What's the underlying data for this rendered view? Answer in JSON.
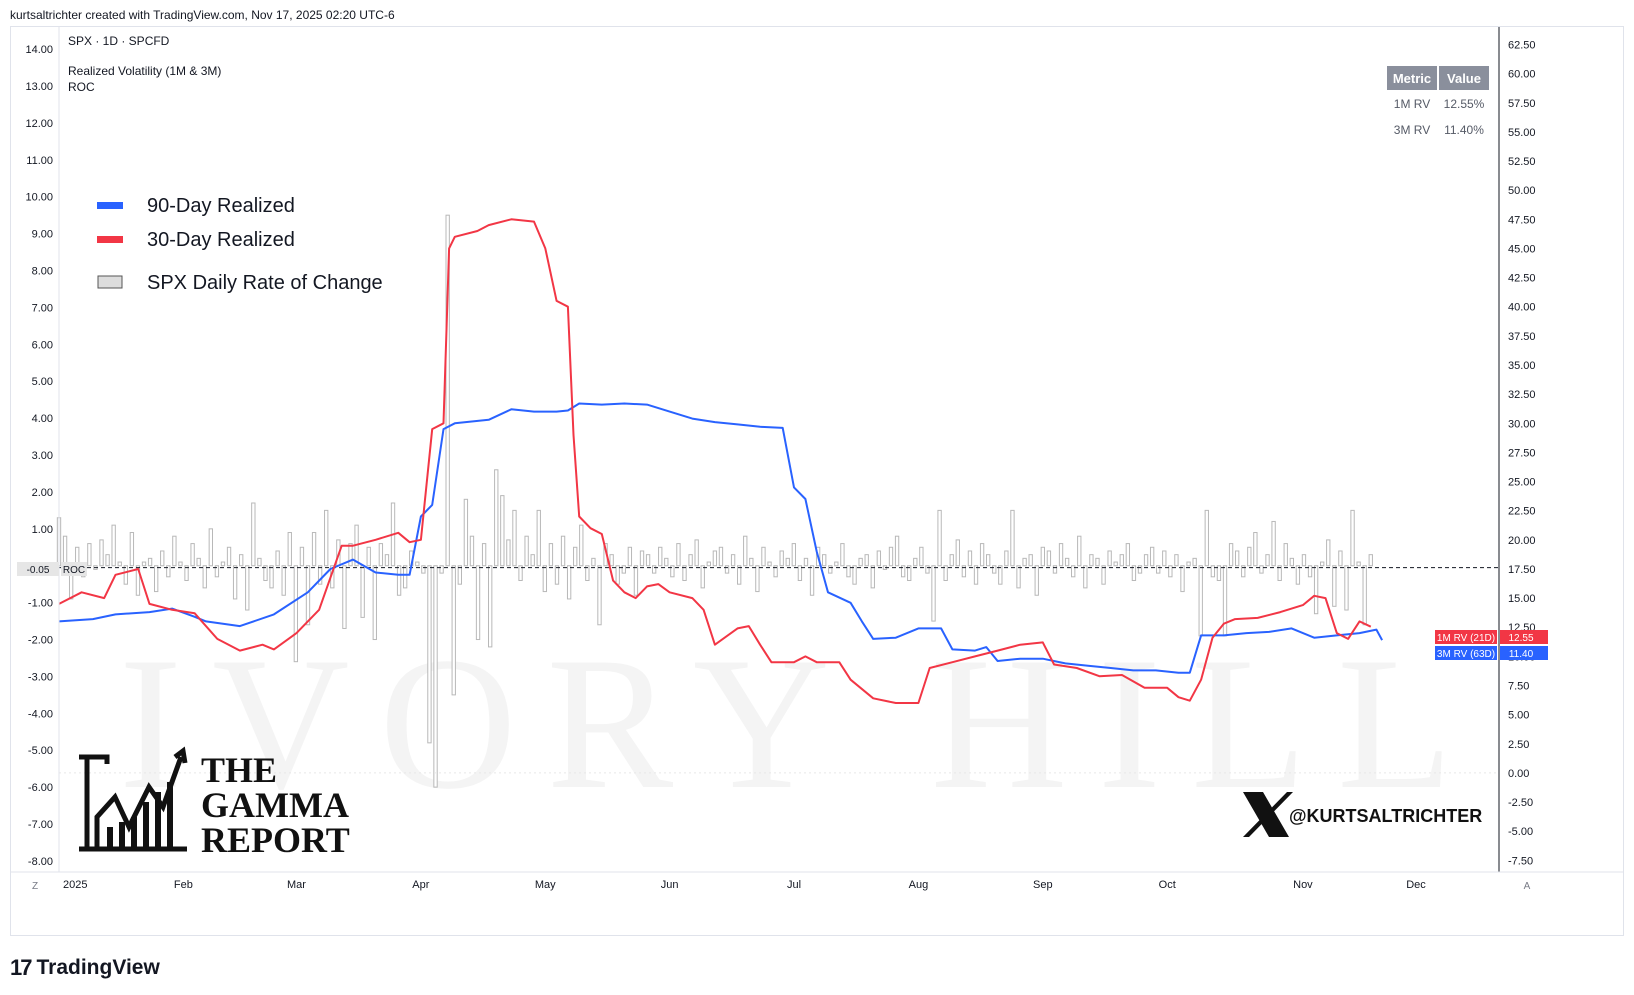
{
  "header": {
    "attribution": "kurtsaltrichter created with TradingView.com, Nov 17, 2025 02:20 UTC-6"
  },
  "pane": {
    "symbol": "SPX · 1D · SPCFD",
    "indicator_name": "Realized Volatility (1M & 3M)",
    "roc_label": "ROC"
  },
  "legend": {
    "items": [
      {
        "label": "90-Day Realized",
        "color": "#2962ff",
        "kind": "line"
      },
      {
        "label": "30-Day Realized",
        "color": "#f23645",
        "kind": "line"
      },
      {
        "label": "SPX Daily Rate of Change",
        "color": "#bdbdbd",
        "kind": "box"
      }
    ]
  },
  "metrics_table": {
    "headers": [
      "Metric",
      "Value"
    ],
    "rows": [
      {
        "metric": "1M RV",
        "value": "12.55%"
      },
      {
        "metric": "3M RV",
        "value": "11.40%"
      }
    ]
  },
  "price_tags": {
    "red": {
      "label": "1M RV (21D)",
      "value": "12.55",
      "color": "#f23645"
    },
    "blue": {
      "label": "3M RV (63D)",
      "value": "11.40",
      "color": "#2962ff"
    },
    "roc": {
      "label": "ROC",
      "value": "-0.05"
    }
  },
  "branding": {
    "gamma_report": [
      "THE",
      "GAMMA",
      "REPORT"
    ],
    "x_handle": "@KURTSALTRICHTER",
    "watermark": "IVORY HILL",
    "footer": "TradingView"
  },
  "toolbar": {
    "left_button": "Z",
    "right_button": "A"
  },
  "chart_data": {
    "type": "line",
    "x_range": [
      0,
      240
    ],
    "x_ticks": [
      {
        "label": "2025",
        "x": 0
      },
      {
        "label": "Feb",
        "x": 22
      },
      {
        "label": "Mar",
        "x": 42
      },
      {
        "label": "Apr",
        "x": 64
      },
      {
        "label": "May",
        "x": 86
      },
      {
        "label": "Jun",
        "x": 108
      },
      {
        "label": "Jul",
        "x": 130
      },
      {
        "label": "Aug",
        "x": 152
      },
      {
        "label": "Sep",
        "x": 174
      },
      {
        "label": "Oct",
        "x": 196
      },
      {
        "label": "Nov",
        "x": 220
      },
      {
        "label": "Dec",
        "x": 240
      }
    ],
    "left_axis": {
      "ylim": [
        -8.3,
        14.6
      ],
      "ticks": [
        "14.00",
        "13.00",
        "12.00",
        "11.00",
        "10.00",
        "9.00",
        "8.00",
        "7.00",
        "6.00",
        "5.00",
        "4.00",
        "3.00",
        "2.00",
        "1.00",
        "-1.00",
        "-2.00",
        "-3.00",
        "-4.00",
        "-5.00",
        "-6.00",
        "-7.00",
        "-8.00"
      ]
    },
    "right_axis": {
      "ylim": [
        -8.5,
        64
      ],
      "ticks": [
        "62.50",
        "60.00",
        "57.50",
        "55.00",
        "52.50",
        "50.00",
        "47.50",
        "45.00",
        "42.50",
        "40.00",
        "37.50",
        "35.00",
        "32.50",
        "30.00",
        "27.50",
        "25.00",
        "22.50",
        "20.00",
        "17.50",
        "15.00",
        "12.50",
        "10.00",
        "7.50",
        "5.00",
        "2.50",
        "0.00",
        "-2.50",
        "-5.00",
        "-7.50"
      ]
    },
    "roc_reference": -0.05,
    "series": [
      {
        "name": "90-Day Realized",
        "color": "#2962ff",
        "axis": "right",
        "points": [
          [
            0,
            13.0
          ],
          [
            6,
            13.2
          ],
          [
            10,
            13.6
          ],
          [
            16,
            13.8
          ],
          [
            20,
            14.1
          ],
          [
            24,
            13.4
          ],
          [
            26,
            13.0
          ],
          [
            32,
            12.6
          ],
          [
            38,
            13.6
          ],
          [
            44,
            15.5
          ],
          [
            48,
            17.5
          ],
          [
            52,
            18.3
          ],
          [
            56,
            17.2
          ],
          [
            60,
            17.0
          ],
          [
            62,
            17.0
          ],
          [
            64,
            22.0
          ],
          [
            66,
            23.0
          ],
          [
            68,
            29.5
          ],
          [
            70,
            30.0
          ],
          [
            76,
            30.3
          ],
          [
            80,
            31.2
          ],
          [
            84,
            31.0
          ],
          [
            88,
            31.0
          ],
          [
            90,
            31.1
          ],
          [
            92,
            31.7
          ],
          [
            96,
            31.6
          ],
          [
            100,
            31.7
          ],
          [
            104,
            31.6
          ],
          [
            108,
            31.0
          ],
          [
            112,
            30.4
          ],
          [
            116,
            30.1
          ],
          [
            120,
            29.9
          ],
          [
            124,
            29.7
          ],
          [
            128,
            29.6
          ],
          [
            130,
            24.5
          ],
          [
            132,
            23.5
          ],
          [
            134,
            19.0
          ],
          [
            136,
            15.5
          ],
          [
            140,
            14.6
          ],
          [
            142,
            13.0
          ],
          [
            144,
            11.5
          ],
          [
            148,
            11.6
          ],
          [
            152,
            12.4
          ],
          [
            156,
            12.4
          ],
          [
            158,
            10.6
          ],
          [
            162,
            10.5
          ],
          [
            164,
            10.8
          ],
          [
            166,
            9.6
          ],
          [
            170,
            9.8
          ],
          [
            174,
            9.8
          ],
          [
            178,
            9.4
          ],
          [
            182,
            9.2
          ],
          [
            186,
            9.0
          ],
          [
            190,
            8.8
          ],
          [
            194,
            8.8
          ],
          [
            198,
            8.6
          ],
          [
            200,
            8.6
          ],
          [
            202,
            11.8
          ],
          [
            206,
            11.8
          ],
          [
            210,
            12.0
          ],
          [
            214,
            12.1
          ],
          [
            218,
            12.4
          ],
          [
            222,
            11.6
          ],
          [
            226,
            11.8
          ],
          [
            230,
            12.0
          ],
          [
            233,
            12.3
          ],
          [
            234,
            11.4
          ]
        ]
      },
      {
        "name": "30-Day Realized",
        "color": "#f23645",
        "axis": "right",
        "points": [
          [
            0,
            14.5
          ],
          [
            4,
            15.5
          ],
          [
            8,
            15.0
          ],
          [
            10,
            17.0
          ],
          [
            14,
            17.5
          ],
          [
            16,
            14.5
          ],
          [
            20,
            14.0
          ],
          [
            24,
            13.7
          ],
          [
            28,
            11.5
          ],
          [
            32,
            10.5
          ],
          [
            36,
            11.0
          ],
          [
            38,
            10.6
          ],
          [
            42,
            12.0
          ],
          [
            46,
            14.0
          ],
          [
            50,
            19.5
          ],
          [
            52,
            19.5
          ],
          [
            56,
            20.0
          ],
          [
            60,
            20.6
          ],
          [
            62,
            19.8
          ],
          [
            64,
            20.0
          ],
          [
            66,
            29.5
          ],
          [
            68,
            30.0
          ],
          [
            69,
            45.0
          ],
          [
            70,
            46.0
          ],
          [
            74,
            46.5
          ],
          [
            76,
            47.0
          ],
          [
            80,
            47.5
          ],
          [
            84,
            47.3
          ],
          [
            86,
            45.0
          ],
          [
            88,
            40.5
          ],
          [
            90,
            40.0
          ],
          [
            91,
            29.0
          ],
          [
            92,
            22.0
          ],
          [
            94,
            21.0
          ],
          [
            96,
            20.5
          ],
          [
            98,
            16.5
          ],
          [
            100,
            15.5
          ],
          [
            102,
            15.0
          ],
          [
            104,
            16.0
          ],
          [
            106,
            16.2
          ],
          [
            108,
            15.5
          ],
          [
            112,
            15.0
          ],
          [
            114,
            14.0
          ],
          [
            116,
            11.0
          ],
          [
            120,
            12.4
          ],
          [
            122,
            12.6
          ],
          [
            124,
            11.0
          ],
          [
            126,
            9.5
          ],
          [
            130,
            9.5
          ],
          [
            132,
            10.0
          ],
          [
            134,
            9.5
          ],
          [
            138,
            9.5
          ],
          [
            140,
            8.0
          ],
          [
            144,
            6.4
          ],
          [
            148,
            6.0
          ],
          [
            152,
            6.0
          ],
          [
            154,
            9.0
          ],
          [
            158,
            9.5
          ],
          [
            162,
            10.0
          ],
          [
            166,
            10.5
          ],
          [
            170,
            11.0
          ],
          [
            174,
            11.2
          ],
          [
            176,
            9.3
          ],
          [
            180,
            9.0
          ],
          [
            184,
            8.3
          ],
          [
            188,
            8.4
          ],
          [
            192,
            7.3
          ],
          [
            196,
            7.3
          ],
          [
            198,
            6.5
          ],
          [
            200,
            6.2
          ],
          [
            202,
            8.0
          ],
          [
            204,
            11.6
          ],
          [
            206,
            12.8
          ],
          [
            208,
            13.2
          ],
          [
            212,
            13.3
          ],
          [
            216,
            13.8
          ],
          [
            220,
            14.4
          ],
          [
            222,
            15.2
          ],
          [
            224,
            15.0
          ],
          [
            226,
            12.0
          ],
          [
            228,
            11.5
          ],
          [
            230,
            13.0
          ],
          [
            232,
            12.55
          ]
        ]
      }
    ],
    "roc_bars": {
      "name": "SPX Daily Rate of Change",
      "axis": "left",
      "values": [
        1.3,
        0.8,
        -0.9,
        0.5,
        -0.3,
        0.6,
        -0.1,
        0.7,
        0.3,
        1.1,
        0.1,
        -0.5,
        0.9,
        -0.8,
        0.1,
        0.2,
        -0.7,
        0.4,
        -0.3,
        0.8,
        0.1,
        -0.4,
        0.6,
        0.2,
        -0.6,
        1.0,
        -0.3,
        0.1,
        0.5,
        -0.9,
        0.3,
        -1.2,
        1.7,
        0.2,
        -0.4,
        -0.6,
        0.4,
        -0.8,
        0.9,
        -2.6,
        0.5,
        -1.6,
        0.9,
        -0.5,
        1.5,
        -0.6,
        0.7,
        -1.7,
        0.6,
        1.1,
        -1.4,
        0.5,
        -2.0,
        0.6,
        0.3,
        1.7,
        -0.8,
        -0.6,
        0.4,
        0.1,
        -0.2,
        -4.8,
        -6.0,
        -0.2,
        9.5,
        -3.5,
        -0.5,
        1.8,
        0.8,
        -2.0,
        0.6,
        -2.2,
        2.6,
        1.9,
        0.7,
        1.5,
        -0.4,
        0.8,
        0.3,
        1.5,
        -0.7,
        0.6,
        -0.5,
        0.8,
        -0.9,
        0.5,
        1.1,
        -0.4,
        0.2,
        -1.6,
        0.6,
        0.3,
        -0.5,
        -0.2,
        0.5,
        -0.8,
        0.4,
        0.3,
        -0.2,
        0.5,
        0.2,
        -0.3,
        0.6,
        -0.4,
        0.3,
        0.7,
        -0.6,
        0.1,
        0.4,
        0.5,
        -0.2,
        0.3,
        -0.5,
        0.8,
        0.2,
        -0.7,
        0.5,
        0.1,
        -0.3,
        0.4,
        0.2,
        0.6,
        -0.4,
        0.2,
        -0.8,
        0.5,
        0.3,
        -0.2,
        0.1,
        0.6,
        -0.3,
        -0.5,
        0.2,
        0.3,
        -0.6,
        0.4,
        -0.1,
        0.5,
        0.8,
        -0.3,
        -0.4,
        0.2,
        0.5,
        -0.2,
        -1.5,
        1.5,
        -0.4,
        0.3,
        0.7,
        -0.3,
        0.4,
        -0.5,
        0.6,
        0.3,
        -0.2,
        -0.5,
        0.4,
        1.5,
        -0.6,
        0.2,
        0.3,
        -0.8,
        0.5,
        0.4,
        -0.2,
        0.6,
        0.2,
        -0.3,
        0.8,
        -0.6,
        0.3,
        0.2,
        -0.5,
        0.4,
        0.1,
        0.3,
        0.6,
        -0.4,
        -0.2,
        0.3,
        0.5,
        -0.2,
        0.4,
        -0.3,
        0.3,
        -0.7,
        0.1,
        0.2,
        -1.9,
        1.5,
        -0.3,
        -0.4,
        -1.9,
        0.6,
        0.4,
        -0.3,
        0.5,
        0.9,
        -0.2,
        0.3,
        1.2,
        -0.4,
        0.6,
        0.2,
        -0.5,
        0.3,
        -0.3,
        -1.3,
        0.1,
        0.7,
        -1.1,
        0.4,
        -1.2,
        1.5,
        0.1,
        -1.6,
        0.3
      ]
    }
  }
}
